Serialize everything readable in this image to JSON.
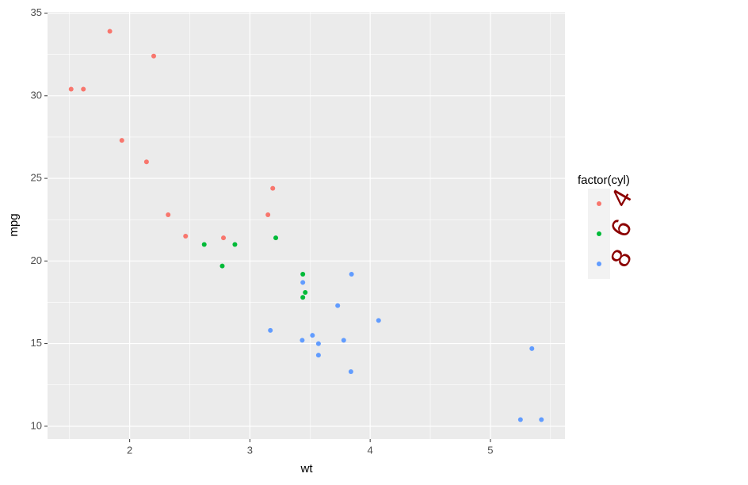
{
  "chart_data": {
    "type": "scatter",
    "x_label": "wt",
    "y_label": "mpg",
    "legend_title": "factor(cyl)",
    "xlim": [
      1.317,
      5.62
    ],
    "ylim": [
      9.225,
      35.075
    ],
    "xticks": [
      2,
      3,
      4,
      5
    ],
    "yticks": [
      10,
      15,
      20,
      25,
      30,
      35
    ],
    "minor_xticks": [
      1.5,
      2.5,
      3.5,
      4.5,
      5.5
    ],
    "minor_yticks": [
      12.5,
      17.5,
      22.5,
      27.5,
      32.5
    ],
    "grid": true,
    "legend_position": "right",
    "series": [
      {
        "name": "4",
        "color": "#F8766D",
        "x": [
          2.32,
          3.19,
          3.15,
          2.2,
          1.615,
          1.835,
          2.465,
          1.935,
          2.14,
          1.513,
          2.78
        ],
        "values": [
          22.8,
          24.4,
          22.8,
          32.4,
          30.4,
          33.9,
          21.5,
          27.3,
          26.0,
          30.4,
          21.4
        ]
      },
      {
        "name": "6",
        "color": "#00BA38",
        "x": [
          2.62,
          2.875,
          3.215,
          3.46,
          3.44,
          3.44,
          2.77
        ],
        "values": [
          21.0,
          21.0,
          21.4,
          18.1,
          19.2,
          17.8,
          19.7
        ]
      },
      {
        "name": "8",
        "color": "#619CFF",
        "x": [
          3.44,
          3.57,
          4.07,
          3.73,
          3.78,
          5.25,
          5.424,
          5.345,
          3.52,
          3.435,
          3.84,
          3.845,
          3.17,
          3.57
        ],
        "values": [
          18.7,
          14.3,
          16.4,
          17.3,
          15.2,
          10.4,
          10.4,
          14.7,
          15.5,
          15.2,
          13.3,
          19.2,
          15.8,
          15.0
        ]
      }
    ]
  }
}
